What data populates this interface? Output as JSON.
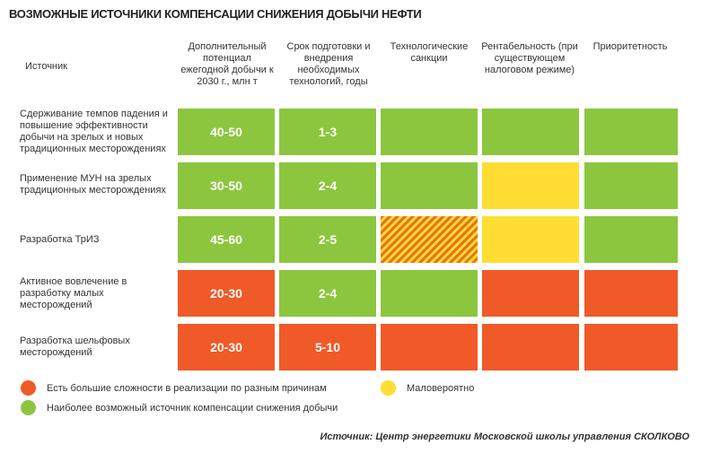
{
  "title": "ВОЗМОЖНЫЕ ИСТОЧНИКИ КОМПЕНСАЦИИ СНИЖЕНИЯ ДОБЫЧИ НЕФТИ",
  "colors": {
    "red": "#F05A28",
    "green": "#8CC63F",
    "yellow": "#FFDD33",
    "stripe_dark": "#E8731A"
  },
  "chart_data": {
    "type": "table",
    "columns": [
      {
        "key": "source",
        "label": "Источник"
      },
      {
        "key": "potential",
        "label": "Дополнительный потенциал ежегодной добычи к 2030 г., млн т"
      },
      {
        "key": "term",
        "label": "Срок подготовки и внедрения необходимых технологий, годы"
      },
      {
        "key": "sanctions",
        "label": "Технологические санкции"
      },
      {
        "key": "profitability",
        "label": "Рентабельность (при существующем налоговом режиме)"
      },
      {
        "key": "priority",
        "label": "Приоритетность"
      }
    ],
    "rows": [
      {
        "source": "Сдерживание темпов падения и повышение эффективности добычи на зрелых и новых традиционных месторождениях",
        "cells": [
          {
            "text": "40-50",
            "status": "green"
          },
          {
            "text": "1-3",
            "status": "green"
          },
          {
            "text": "",
            "status": "green"
          },
          {
            "text": "",
            "status": "green"
          },
          {
            "text": "",
            "status": "green"
          }
        ]
      },
      {
        "source": "Применение МУН на зрелых традиционных месторождениях",
        "cells": [
          {
            "text": "30-50",
            "status": "green"
          },
          {
            "text": "2-4",
            "status": "green"
          },
          {
            "text": "",
            "status": "green"
          },
          {
            "text": "",
            "status": "yellow"
          },
          {
            "text": "",
            "status": "green"
          }
        ]
      },
      {
        "source": "Разработка ТрИЗ",
        "cells": [
          {
            "text": "45-60",
            "status": "green"
          },
          {
            "text": "2-5",
            "status": "green"
          },
          {
            "text": "",
            "status": "striped"
          },
          {
            "text": "",
            "status": "yellow"
          },
          {
            "text": "",
            "status": "green"
          }
        ]
      },
      {
        "source": "Активное вовлечение в разработку малых месторождений",
        "cells": [
          {
            "text": "20-30",
            "status": "red"
          },
          {
            "text": "2-4",
            "status": "green"
          },
          {
            "text": "",
            "status": "green"
          },
          {
            "text": "",
            "status": "red"
          },
          {
            "text": "",
            "status": "red"
          }
        ]
      },
      {
        "source": "Разработка шельфовых месторождений",
        "cells": [
          {
            "text": "20-30",
            "status": "red"
          },
          {
            "text": "5-10",
            "status": "red"
          },
          {
            "text": "",
            "status": "red"
          },
          {
            "text": "",
            "status": "red"
          },
          {
            "text": "",
            "status": "red"
          }
        ]
      }
    ],
    "legend": [
      {
        "status": "red",
        "label": "Есть большие сложности в реализации по разным причинам"
      },
      {
        "status": "yellow",
        "label": "Маловероятно"
      },
      {
        "status": "green",
        "label": "Наиболее возможный источник компенсации снижения добычи"
      }
    ]
  },
  "source_note": "Источник: Центр энергетики Московской школы управления СКОЛКОВО"
}
